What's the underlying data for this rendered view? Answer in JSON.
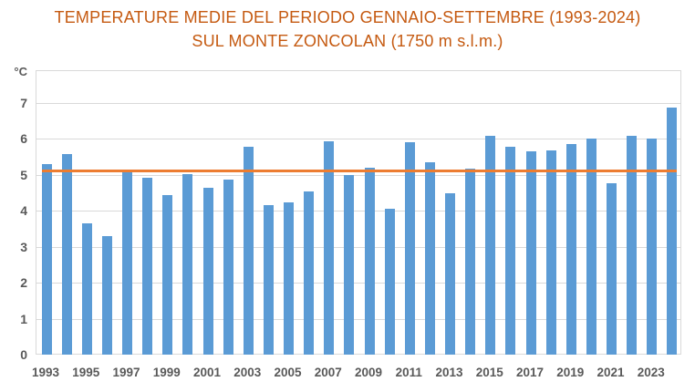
{
  "chart_data": {
    "type": "bar",
    "title": "TEMPERATURE MEDIE DEL PERIODO GENNAIO-SETTEMBRE (1993-2024)",
    "subtitle": "SUL MONTE ZONCOLAN (1750 m s.l.m.)",
    "unit_label": "°C",
    "xlabel": "",
    "ylabel": "°C",
    "categories": [
      1993,
      1994,
      1995,
      1996,
      1997,
      1998,
      1999,
      2000,
      2001,
      2002,
      2003,
      2004,
      2005,
      2006,
      2007,
      2008,
      2009,
      2010,
      2011,
      2012,
      2013,
      2014,
      2015,
      2016,
      2017,
      2018,
      2019,
      2020,
      2021,
      2022,
      2023,
      2024
    ],
    "values": [
      5.3,
      5.57,
      3.65,
      3.28,
      5.07,
      4.9,
      4.44,
      5.02,
      4.63,
      4.85,
      5.77,
      4.14,
      4.22,
      4.54,
      5.93,
      5.0,
      5.19,
      4.05,
      5.9,
      5.33,
      4.49,
      5.16,
      6.08,
      5.77,
      5.65,
      5.68,
      5.86,
      6.01,
      4.77,
      6.08,
      6.01,
      6.87
    ],
    "average_line": {
      "value": 5.1
    },
    "ylim": [
      0,
      7.9
    ],
    "yticks": [
      0,
      1,
      2,
      3,
      4,
      5,
      6,
      7
    ],
    "xtick_labels": [
      "1993",
      "1995",
      "1997",
      "1999",
      "2001",
      "2003",
      "2005",
      "2007",
      "2009",
      "2011",
      "2013",
      "2015",
      "2017",
      "2019",
      "2021",
      "2023"
    ],
    "grid": true,
    "legend": "none",
    "colors": {
      "bar": "#5B9BD5",
      "average_line": "#ED7D31",
      "title": "#C55A11",
      "axis_text": "#595959",
      "gridline": "#D9D9D9",
      "background": "#FFFFFF"
    }
  }
}
